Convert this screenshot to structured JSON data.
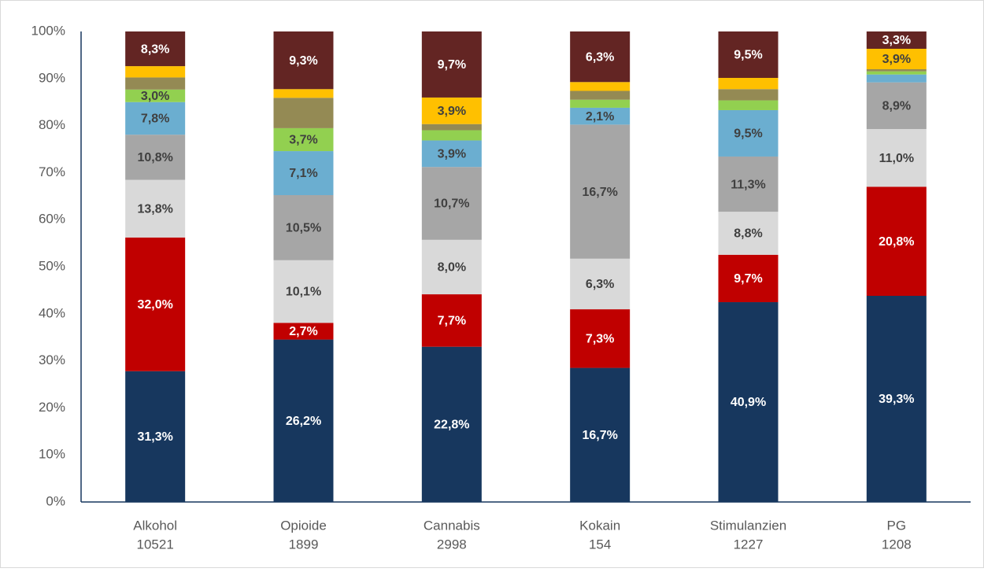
{
  "chart_data": {
    "type": "stacked_bar_percent",
    "categories": [
      "Alkohol",
      "Opioide",
      "Cannabis",
      "Kokain",
      "Stimulanzien",
      "PG"
    ],
    "category_counts": [
      10521,
      1899,
      2998,
      154,
      1227,
      1208
    ],
    "ylim": [
      0,
      100
    ],
    "yticks": [
      {
        "value": 0,
        "label": "0%"
      },
      {
        "value": 10,
        "label": "10%"
      },
      {
        "value": 20,
        "label": "20%"
      },
      {
        "value": 30,
        "label": "30%"
      },
      {
        "value": 40,
        "label": "40%"
      },
      {
        "value": 50,
        "label": "50%"
      },
      {
        "value": 60,
        "label": "60%"
      },
      {
        "value": 70,
        "label": "70%"
      },
      {
        "value": 80,
        "label": "80%"
      },
      {
        "value": 90,
        "label": "90%"
      },
      {
        "value": 100,
        "label": "100%"
      }
    ],
    "grid": false,
    "series": [
      {
        "color": "#17375e",
        "label_color": "#ffffff",
        "values": [
          31.3,
          26.2,
          22.8,
          16.7,
          40.9,
          39.3
        ],
        "value_labels": [
          "31,3%",
          "26,2%",
          "22,8%",
          "16,7%",
          "40,9%",
          "39,3%"
        ]
      },
      {
        "color": "#c00000",
        "label_color": "#ffffff",
        "values": [
          32.0,
          2.7,
          7.7,
          7.3,
          9.7,
          20.8
        ],
        "value_labels": [
          "32,0%",
          "2,7%",
          "7,7%",
          "7,3%",
          "9,7%",
          "20,8%"
        ]
      },
      {
        "color": "#d9d9d9",
        "label_color": "#404040",
        "values": [
          13.8,
          10.1,
          8.0,
          6.3,
          8.8,
          11.0
        ],
        "value_labels": [
          "13,8%",
          "10,1%",
          "8,0%",
          "6,3%",
          "8,8%",
          "11,0%"
        ]
      },
      {
        "color": "#a6a6a6",
        "label_color": "#404040",
        "values": [
          10.8,
          10.5,
          10.7,
          16.7,
          11.3,
          8.9
        ],
        "value_labels": [
          "10,8%",
          "10,5%",
          "10,7%",
          "16,7%",
          "11,3%",
          "8,9%"
        ]
      },
      {
        "color": "#6baed0",
        "label_color": "#404040",
        "values": [
          7.8,
          7.1,
          3.9,
          2.1,
          9.5,
          1.5
        ],
        "value_labels": [
          "7,8%",
          "7,1%",
          "3,9%",
          "2,1%",
          "9,5%",
          null
        ]
      },
      {
        "color": "#92d050",
        "label_color": "#404040",
        "values": [
          3.0,
          3.7,
          1.5,
          1.0,
          2.0,
          0.6
        ],
        "value_labels": [
          "3,0%",
          "3,7%",
          null,
          null,
          null,
          null
        ]
      },
      {
        "color": "#948a54",
        "label_color": "#404040",
        "values": [
          2.9,
          4.9,
          0.9,
          1.1,
          2.3,
          0.4
        ],
        "value_labels": [
          null,
          null,
          null,
          null,
          null,
          null
        ]
      },
      {
        "color": "#ffc000",
        "label_color": "#404040",
        "values": [
          2.7,
          1.4,
          3.9,
          1.1,
          2.3,
          3.9
        ],
        "value_labels": [
          null,
          null,
          "3,9%",
          null,
          null,
          "3,9%"
        ]
      },
      {
        "color": "#632523",
        "label_color": "#ffffff",
        "values": [
          8.3,
          9.3,
          9.7,
          6.3,
          9.5,
          3.3
        ],
        "value_labels": [
          "8,3%",
          "9,3%",
          "9,7%",
          "6,3%",
          "9,5%",
          "3,3%"
        ]
      }
    ]
  }
}
